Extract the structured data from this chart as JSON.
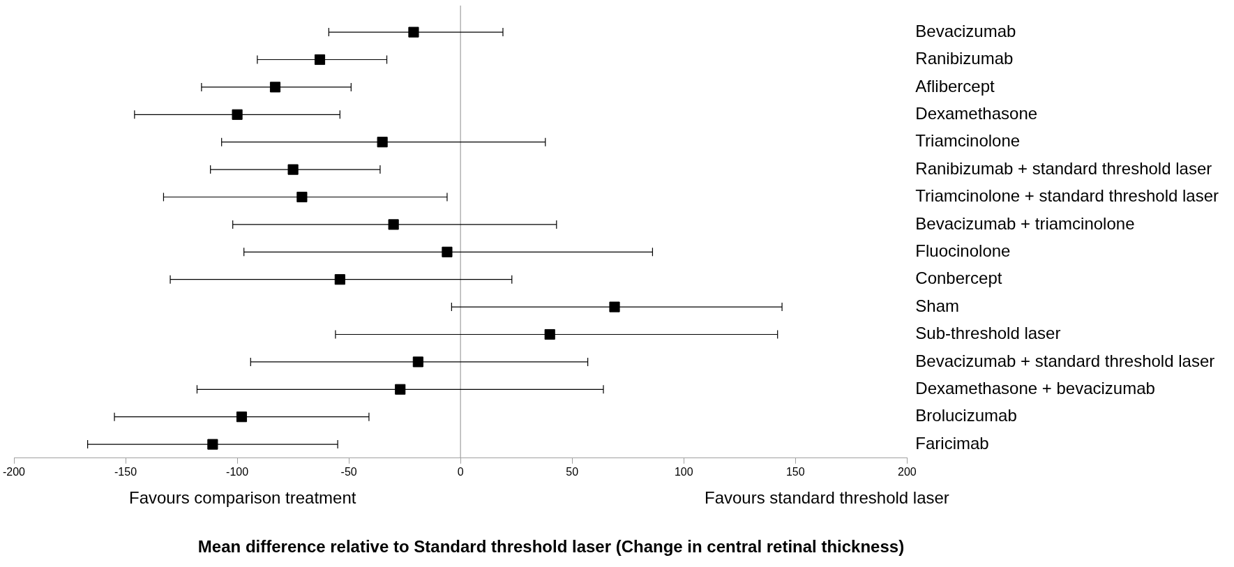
{
  "chart_data": {
    "type": "scatter",
    "orientation": "horizontal",
    "xlabel": "Mean difference relative to Standard threshold laser (Change in central retinal thickness)",
    "categories": [
      "Bevacizumab",
      "Ranibizumab",
      "Aflibercept",
      "Dexamethasone",
      "Triamcinolone",
      "Ranibizumab + standard threshold laser",
      "Triamcinolone + standard threshold laser",
      "Bevacizumab + triamcinolone",
      "Fluocinolone",
      "Conbercept",
      "Sham",
      "Sub-threshold laser",
      "Bevacizumab + standard threshold laser",
      "Dexamethasone + bevacizumab",
      "Brolucizumab",
      "Faricimab"
    ],
    "values": [
      -21,
      -63,
      -83,
      -100,
      -35,
      -75,
      -71,
      -30,
      -6,
      -54,
      69,
      40,
      -19,
      -27,
      -98,
      -111
    ],
    "errors": [
      [
        -59,
        19
      ],
      [
        -91,
        -33
      ],
      [
        -116,
        -49
      ],
      [
        -146,
        -54
      ],
      [
        -107,
        38
      ],
      [
        -112,
        -36
      ],
      [
        -133,
        -6
      ],
      [
        -102,
        43
      ],
      [
        -97,
        86
      ],
      [
        -130,
        23
      ],
      [
        -4,
        144
      ],
      [
        -56,
        142
      ],
      [
        -94,
        57
      ],
      [
        -118,
        64
      ],
      [
        -155,
        -41
      ],
      [
        -167,
        -55
      ]
    ],
    "color": "#000000",
    "marker": "square",
    "xlim": [
      -200,
      200
    ],
    "xticks": [
      -200,
      -150,
      -100,
      -50,
      0,
      50,
      100,
      150,
      200
    ],
    "ref_lines": [
      {
        "axis": "x",
        "value": 0,
        "color": "#a0a0a0"
      }
    ],
    "annotations": [
      "Favours comparison treatment",
      "Favours standard threshold laser"
    ],
    "grid": false,
    "legend": false
  }
}
